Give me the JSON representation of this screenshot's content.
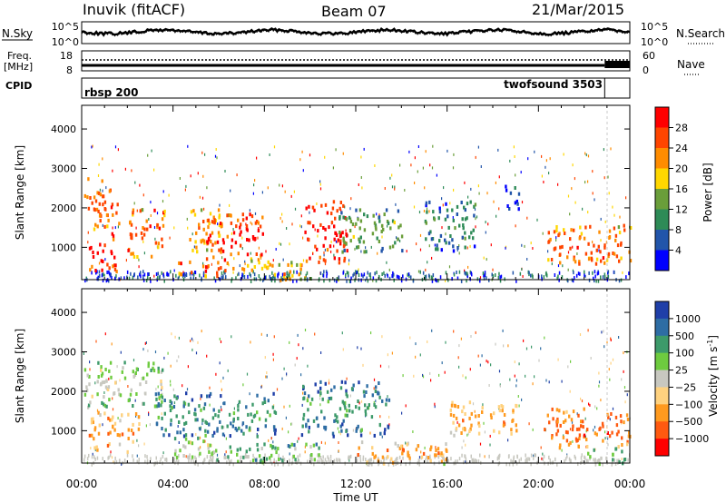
{
  "header": {
    "station": "Inuvik (fitACF)",
    "beam": "Beam 07",
    "date": "21/Mar/2015"
  },
  "strips": {
    "nsky_label": "N.Sky",
    "nsearch_label": "N.Search",
    "nsky_ticks": [
      "10^5",
      "10^0"
    ],
    "freq_label_1": "Freq.",
    "freq_label_2": "[MHz]",
    "freq_ticks": [
      "18",
      "8"
    ],
    "nave_label": "Nave",
    "nave_ticks": [
      "60",
      "0"
    ],
    "cpid_label": "CPID",
    "cpid_1": "rbsp 200",
    "cpid_2": "twofsound 3503",
    "cpid_switch_hour": 22.9
  },
  "chart_data": [
    {
      "type": "heatmap",
      "panel": "power",
      "ylabel": "Slant Range [km]",
      "xlabel": "Time UT",
      "xlim": [
        0,
        24
      ],
      "ylim": [
        180,
        4600
      ],
      "yticks": [
        1000,
        2000,
        3000,
        4000
      ],
      "xtick_labels": [
        "00:00",
        "04:00",
        "08:00",
        "12:00",
        "16:00",
        "20:00",
        "00:00"
      ],
      "colorbar": {
        "label": "Power [dB]",
        "ticks": [
          "28",
          "24",
          "20",
          "16",
          "12",
          "8",
          "4"
        ],
        "colors": [
          "#ff0000",
          "#ff4500",
          "#ff8c00",
          "#ffd700",
          "#6a9e3a",
          "#2e8b57",
          "#2255aa",
          "#0000ff"
        ]
      },
      "regions": [
        {
          "t0": 0.1,
          "t1": 1.6,
          "r0": 1500,
          "r1": 2800,
          "level": 6
        },
        {
          "t0": 0.3,
          "t1": 1.5,
          "r0": 400,
          "r1": 1400,
          "level": 7
        },
        {
          "t0": 2.0,
          "t1": 3.6,
          "r0": 800,
          "r1": 2000,
          "level": 6
        },
        {
          "t0": 4.6,
          "t1": 6.4,
          "r0": 900,
          "r1": 2000,
          "level": 5
        },
        {
          "t0": 5.4,
          "t1": 7.9,
          "r0": 700,
          "r1": 1900,
          "level": 7
        },
        {
          "t0": 4.2,
          "t1": 6.6,
          "r0": 300,
          "r1": 700,
          "level": 6
        },
        {
          "t0": 6.6,
          "t1": 10.0,
          "r0": 200,
          "r1": 700,
          "level": 5
        },
        {
          "t0": 9.7,
          "t1": 11.6,
          "r0": 650,
          "r1": 2200,
          "level": 7
        },
        {
          "t0": 11.2,
          "t1": 14.0,
          "r0": 900,
          "r1": 2000,
          "level": 3
        },
        {
          "t0": 15.0,
          "t1": 17.2,
          "r0": 900,
          "r1": 2200,
          "level": 2
        },
        {
          "t0": 20.3,
          "t1": 24.0,
          "r0": 600,
          "r1": 1600,
          "level": 6
        },
        {
          "t0": 18.5,
          "t1": 19.2,
          "r0": 2000,
          "r1": 2700,
          "level": 1
        }
      ]
    },
    {
      "type": "heatmap",
      "panel": "velocity",
      "ylabel": "Slant Range [km]",
      "xlabel": "Time UT",
      "xlim": [
        0,
        24
      ],
      "ylim": [
        180,
        4600
      ],
      "yticks": [
        1000,
        2000,
        3000,
        4000
      ],
      "xtick_labels": [
        "00:00",
        "04:00",
        "08:00",
        "12:00",
        "16:00",
        "20:00",
        "00:00"
      ],
      "colorbar": {
        "label": "Velocity [m s",
        "label_exp": "-1",
        "label_end": "]",
        "ticks": [
          "1000",
          "500",
          "100",
          "25",
          "−25",
          "−100",
          "−500",
          "−1000"
        ],
        "colors": [
          "#1f3fa8",
          "#2e6da4",
          "#3d9a6a",
          "#6ecb3f",
          "#c8c8c0",
          "#ffd27f",
          "#ff9a1f",
          "#ff5a10",
          "#ff0000"
        ]
      },
      "regions": [
        {
          "t0": 0.1,
          "t1": 3.5,
          "r0": 1600,
          "r1": 2800,
          "level": 4
        },
        {
          "t0": 0.3,
          "t1": 2.5,
          "r0": 500,
          "r1": 1500,
          "level": 6
        },
        {
          "t0": 3.2,
          "t1": 8.5,
          "r0": 900,
          "r1": 2000,
          "level": 2
        },
        {
          "t0": 3.8,
          "t1": 5.6,
          "r0": 350,
          "r1": 900,
          "level": 4
        },
        {
          "t0": 5.6,
          "t1": 10.5,
          "r0": 200,
          "r1": 700,
          "level": 3
        },
        {
          "t0": 9.6,
          "t1": 13.5,
          "r0": 900,
          "r1": 2300,
          "level": 2
        },
        {
          "t0": 12.0,
          "t1": 16.0,
          "r0": 200,
          "r1": 800,
          "level": 6
        },
        {
          "t0": 16.0,
          "t1": 19.0,
          "r0": 900,
          "r1": 1800,
          "level": 6
        },
        {
          "t0": 20.2,
          "t1": 24.0,
          "r0": 600,
          "r1": 1600,
          "level": 7
        },
        {
          "t0": 22.0,
          "t1": 23.8,
          "r0": 200,
          "r1": 600,
          "level": 3
        }
      ]
    }
  ]
}
